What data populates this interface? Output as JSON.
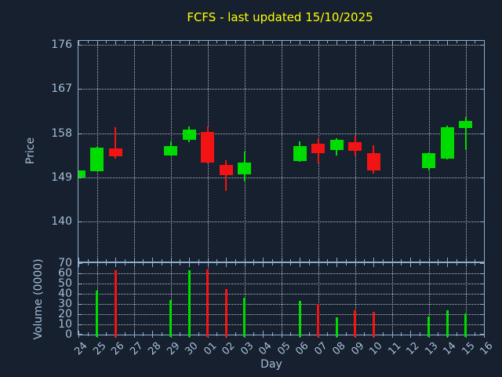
{
  "title": "FCFS - last updated 15/10/2025",
  "colors": {
    "background": "#16202e",
    "axis": "#8fadcc",
    "label_text": "#a6bed8",
    "title_text": "#ffff00",
    "grid": "rgba(205,212,220,0.85)",
    "up": "#00dc00",
    "down": "#f21414"
  },
  "axis_titles": {
    "x": "Day",
    "y_price": "Price",
    "y_volume": "Volume (0000)"
  },
  "chart_data": [
    {
      "type": "candlestick",
      "title": "FCFS - last updated 15/10/2025",
      "xlabel": "Day",
      "ylabel": "Price",
      "x_ticklabels": [
        "24",
        "25",
        "26",
        "27",
        "28",
        "29",
        "30",
        "01",
        "02",
        "03",
        "04",
        "05",
        "06",
        "07",
        "08",
        "09",
        "10",
        "11",
        "12",
        "13",
        "14",
        "15",
        "16"
      ],
      "y_ticks": [
        140,
        149,
        158,
        167,
        176
      ],
      "ylim": [
        131.9,
        177.0
      ],
      "grid": "dotted, horizontal at each price tick, vertical at every second day",
      "legend": "none",
      "candles": [
        {
          "day": "24",
          "open": 149.0,
          "high": 150.5,
          "low": 148.8,
          "close": 150.4,
          "direction": "up"
        },
        {
          "day": "25",
          "open": 150.3,
          "high": 155.2,
          "low": 150.2,
          "close": 155.1,
          "direction": "up"
        },
        {
          "day": "26",
          "open": 154.9,
          "high": 159.2,
          "low": 152.8,
          "close": 153.3,
          "direction": "down"
        },
        {
          "day": "29",
          "open": 153.5,
          "high": 156.3,
          "low": 153.4,
          "close": 155.3,
          "direction": "up"
        },
        {
          "day": "30",
          "open": 156.7,
          "high": 159.4,
          "low": 156.1,
          "close": 158.7,
          "direction": "up"
        },
        {
          "day": "01",
          "open": 158.3,
          "high": 159.3,
          "low": 151.8,
          "close": 152.1,
          "direction": "down"
        },
        {
          "day": "02",
          "open": 151.5,
          "high": 152.5,
          "low": 146.3,
          "close": 149.5,
          "direction": "down"
        },
        {
          "day": "03",
          "open": 149.6,
          "high": 154.3,
          "low": 148.2,
          "close": 152.0,
          "direction": "up"
        },
        {
          "day": "06",
          "open": 152.3,
          "high": 156.3,
          "low": 152.2,
          "close": 155.4,
          "direction": "up"
        },
        {
          "day": "07",
          "open": 155.8,
          "high": 156.9,
          "low": 151.8,
          "close": 153.9,
          "direction": "down"
        },
        {
          "day": "08",
          "open": 154.6,
          "high": 156.9,
          "low": 153.4,
          "close": 156.7,
          "direction": "up"
        },
        {
          "day": "09",
          "open": 156.1,
          "high": 157.4,
          "low": 153.5,
          "close": 154.4,
          "direction": "down"
        },
        {
          "day": "10",
          "open": 154.0,
          "high": 155.6,
          "low": 149.8,
          "close": 150.5,
          "direction": "down"
        },
        {
          "day": "13",
          "open": 150.9,
          "high": 154.1,
          "low": 150.4,
          "close": 154.0,
          "direction": "up"
        },
        {
          "day": "14",
          "open": 152.8,
          "high": 159.5,
          "low": 152.7,
          "close": 159.2,
          "direction": "up"
        },
        {
          "day": "15",
          "open": 159.1,
          "high": 161.3,
          "low": 154.5,
          "close": 160.5,
          "direction": "up"
        }
      ]
    },
    {
      "type": "bar",
      "ylabel": "Volume (0000)",
      "x_ticklabels": [
        "24",
        "25",
        "26",
        "27",
        "28",
        "29",
        "30",
        "01",
        "02",
        "03",
        "04",
        "05",
        "06",
        "07",
        "08",
        "09",
        "10",
        "11",
        "12",
        "13",
        "14",
        "15",
        "16"
      ],
      "y_ticks": [
        0,
        10,
        20,
        30,
        40,
        50,
        60,
        70
      ],
      "ylim": [
        0,
        70
      ],
      "grid": "dotted, horizontal every 10, vertical at every second day",
      "bars": [
        {
          "day": "25",
          "value": 43,
          "direction": "up"
        },
        {
          "day": "26",
          "value": 63,
          "direction": "down"
        },
        {
          "day": "29",
          "value": 34,
          "direction": "up"
        },
        {
          "day": "30",
          "value": 63,
          "direction": "up"
        },
        {
          "day": "01",
          "value": 64,
          "direction": "down"
        },
        {
          "day": "02",
          "value": 45,
          "direction": "down"
        },
        {
          "day": "03",
          "value": 36,
          "direction": "up"
        },
        {
          "day": "06",
          "value": 33,
          "direction": "up"
        },
        {
          "day": "07",
          "value": 30,
          "direction": "down"
        },
        {
          "day": "08",
          "value": 17,
          "direction": "up"
        },
        {
          "day": "09",
          "value": 24,
          "direction": "down"
        },
        {
          "day": "10",
          "value": 22,
          "direction": "down"
        },
        {
          "day": "13",
          "value": 18,
          "direction": "up"
        },
        {
          "day": "14",
          "value": 24,
          "direction": "up"
        },
        {
          "day": "15",
          "value": 21,
          "direction": "up"
        }
      ]
    }
  ]
}
